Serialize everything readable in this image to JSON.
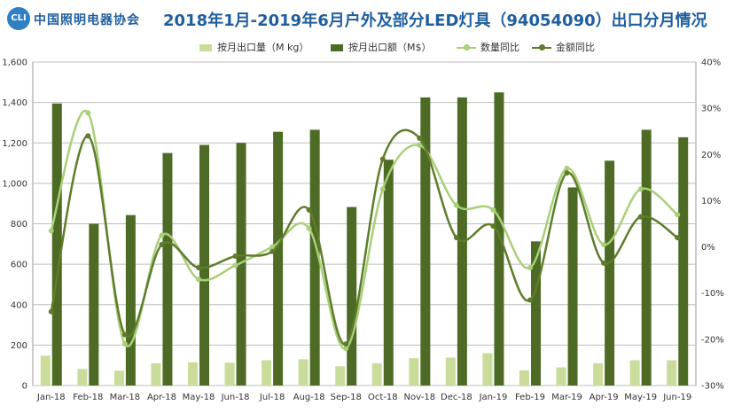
{
  "header": {
    "logo_mark": "CLI",
    "logo_text": "中国照明电器协会"
  },
  "chart_data": {
    "type": "bar",
    "title": "2018年1月-2019年6月户外及部分LED灯具（94054090）出口分月情况",
    "categories": [
      "Jan-18",
      "Feb-18",
      "Mar-18",
      "Apr-18",
      "May-18",
      "Jun-18",
      "Jul-18",
      "Aug-18",
      "Sep-18",
      "Oct-18",
      "Nov-18",
      "Dec-18",
      "Jan-19",
      "Feb-19",
      "Mar-19",
      "Apr-19",
      "May-19",
      "Jun-19"
    ],
    "y_left": {
      "min": 0,
      "max": 1600,
      "step": 200,
      "ticks": [
        "0",
        "200",
        "400",
        "600",
        "800",
        "1,000",
        "1,200",
        "1,400",
        "1,600"
      ]
    },
    "y_right": {
      "min": -30,
      "max": 40,
      "step": 10,
      "ticks": [
        "-30%",
        "-20%",
        "-10%",
        "0%",
        "10%",
        "20%",
        "30%",
        "40%"
      ]
    },
    "series": [
      {
        "name": "按月出口量（M kg）",
        "type": "bar",
        "axis": "left",
        "color": "#c9dc9a",
        "values": [
          148,
          82,
          73,
          110,
          115,
          113,
          125,
          130,
          95,
          110,
          135,
          138,
          160,
          75,
          90,
          110,
          125,
          125
        ]
      },
      {
        "name": "按月出口额（M$）",
        "type": "bar",
        "axis": "left",
        "color": "#4e6b25",
        "values": [
          1395,
          800,
          843,
          1150,
          1190,
          1200,
          1255,
          1265,
          883,
          1117,
          1425,
          1425,
          1450,
          713,
          980,
          1112,
          1265,
          1228
        ]
      },
      {
        "name": "数量同比",
        "type": "line",
        "axis": "right",
        "color": "#a9cf78",
        "values": [
          3.5,
          29,
          -21,
          2.5,
          -7,
          -4,
          0,
          4,
          -22,
          12.5,
          22,
          9,
          8,
          -4.5,
          17,
          0.5,
          12.5,
          7
        ]
      },
      {
        "name": "金额同比",
        "type": "line",
        "axis": "right",
        "color": "#5d7d2a",
        "values": [
          -14,
          24,
          -19,
          0.5,
          -4.5,
          -2,
          -1,
          8,
          -21,
          19,
          23.5,
          2,
          4.5,
          -11.5,
          16,
          -3.5,
          6.5,
          2
        ]
      }
    ],
    "legend_position": "top",
    "grid": true
  }
}
